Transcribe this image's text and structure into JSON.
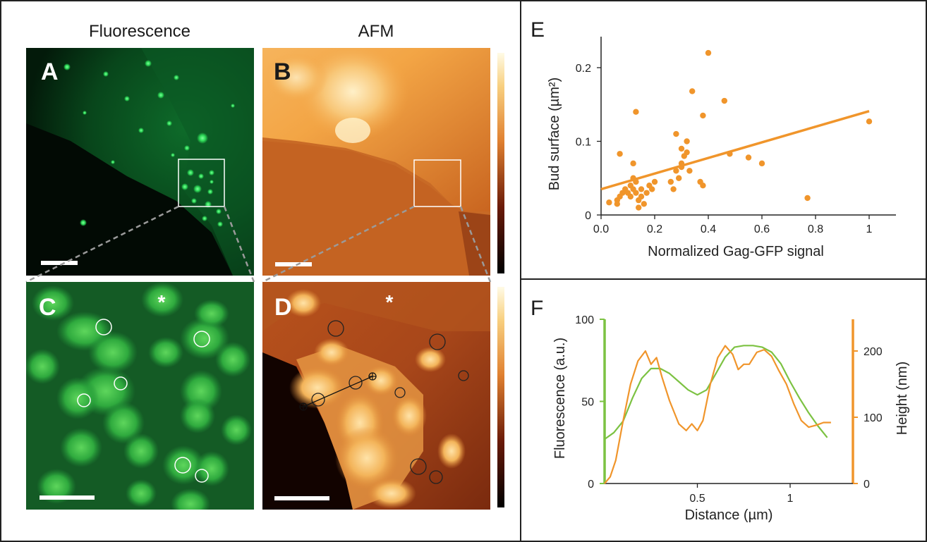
{
  "figure": {
    "column_titles": {
      "left": "Fluorescence",
      "right": "AFM"
    },
    "panel_letters": {
      "a": "A",
      "b": "B",
      "c": "C",
      "d": "D",
      "e": "E",
      "f": "F"
    },
    "asterisk": "*",
    "colors": {
      "fluorescence_green": "#1fbf4a",
      "afm_orange": "#e8912f",
      "afm_dark": "#1a0600",
      "chart_orange": "#f0952b",
      "chart_green": "#7cc242"
    }
  },
  "chart_data": [
    {
      "panel": "E",
      "type": "scatter",
      "xlabel": "Normalized Gag-GFP signal",
      "ylabel": "Bud surface (µm²)",
      "xlim": [
        0,
        1.1
      ],
      "ylim": [
        0,
        0.24
      ],
      "xticks": [
        "0.0",
        "0.2",
        "0.4",
        "0.6",
        "0.8",
        "1"
      ],
      "xtick_values": [
        0,
        0.2,
        0.4,
        0.6,
        0.8,
        1
      ],
      "yticks": [
        "0",
        "0.1",
        "0.2"
      ],
      "ytick_values": [
        0,
        0.1,
        0.2
      ],
      "grid": false,
      "points": [
        [
          0.03,
          0.017
        ],
        [
          0.06,
          0.02
        ],
        [
          0.06,
          0.015
        ],
        [
          0.07,
          0.025
        ],
        [
          0.08,
          0.03
        ],
        [
          0.09,
          0.035
        ],
        [
          0.1,
          0.03
        ],
        [
          0.11,
          0.04
        ],
        [
          0.11,
          0.025
        ],
        [
          0.12,
          0.035
        ],
        [
          0.12,
          0.05
        ],
        [
          0.13,
          0.03
        ],
        [
          0.13,
          0.045
        ],
        [
          0.14,
          0.02
        ],
        [
          0.14,
          0.01
        ],
        [
          0.15,
          0.035
        ],
        [
          0.15,
          0.025
        ],
        [
          0.16,
          0.015
        ],
        [
          0.17,
          0.03
        ],
        [
          0.18,
          0.04
        ],
        [
          0.19,
          0.035
        ],
        [
          0.2,
          0.045
        ],
        [
          0.07,
          0.083
        ],
        [
          0.12,
          0.07
        ],
        [
          0.13,
          0.14
        ],
        [
          0.26,
          0.045
        ],
        [
          0.27,
          0.035
        ],
        [
          0.28,
          0.06
        ],
        [
          0.29,
          0.05
        ],
        [
          0.3,
          0.07
        ],
        [
          0.3,
          0.065
        ],
        [
          0.31,
          0.08
        ],
        [
          0.32,
          0.085
        ],
        [
          0.32,
          0.1
        ],
        [
          0.28,
          0.11
        ],
        [
          0.3,
          0.09
        ],
        [
          0.33,
          0.06
        ],
        [
          0.34,
          0.168
        ],
        [
          0.37,
          0.045
        ],
        [
          0.38,
          0.04
        ],
        [
          0.38,
          0.135
        ],
        [
          0.4,
          0.22
        ],
        [
          0.46,
          0.155
        ],
        [
          0.48,
          0.083
        ],
        [
          0.55,
          0.078
        ],
        [
          0.6,
          0.07
        ],
        [
          0.77,
          0.023
        ],
        [
          1.0,
          0.127
        ]
      ],
      "fit_line": {
        "x": [
          0.0,
          1.0
        ],
        "y": [
          0.035,
          0.141
        ]
      }
    },
    {
      "panel": "F",
      "type": "line",
      "xlabel": "Distance (µm)",
      "ylabel_left": "Fluorescence (a.u.)",
      "ylabel_right": "Height (nm)",
      "xlim": [
        0,
        1.3
      ],
      "ylim_left": [
        0,
        100
      ],
      "ylim_right": [
        0,
        240
      ],
      "xticks": [
        "0.5",
        "1"
      ],
      "xtick_values": [
        0.5,
        1
      ],
      "yticks_left": [
        "0",
        "50",
        "100"
      ],
      "ytick_values_left": [
        0,
        50,
        100
      ],
      "yticks_right": [
        "0",
        "100",
        "200"
      ],
      "ytick_values_right": [
        0,
        100,
        200
      ],
      "grid": false,
      "series": [
        {
          "axis": "left",
          "x": [
            0,
            0.05,
            0.1,
            0.15,
            0.2,
            0.25,
            0.3,
            0.35,
            0.4,
            0.45,
            0.5,
            0.55,
            0.6,
            0.65,
            0.7,
            0.75,
            0.8,
            0.85,
            0.9,
            0.95,
            1.0,
            1.05,
            1.1,
            1.15,
            1.2
          ],
          "y": [
            27,
            31,
            38,
            52,
            64,
            70,
            70,
            67,
            62,
            57,
            54,
            57,
            67,
            77,
            83,
            84,
            84,
            83,
            80,
            73,
            62,
            52,
            43,
            35,
            28
          ]
        },
        {
          "axis": "right",
          "x": [
            0,
            0.03,
            0.06,
            0.1,
            0.14,
            0.18,
            0.22,
            0.25,
            0.28,
            0.31,
            0.35,
            0.4,
            0.44,
            0.47,
            0.5,
            0.53,
            0.57,
            0.61,
            0.65,
            0.69,
            0.72,
            0.75,
            0.78,
            0.82,
            0.86,
            0.9,
            0.94,
            0.98,
            1.02,
            1.06,
            1.1,
            1.14,
            1.18,
            1.22
          ],
          "y": [
            0,
            10,
            35,
            95,
            150,
            185,
            200,
            180,
            190,
            160,
            125,
            90,
            80,
            90,
            80,
            95,
            150,
            190,
            208,
            195,
            172,
            180,
            180,
            198,
            202,
            192,
            170,
            150,
            120,
            95,
            85,
            88,
            92,
            92
          ]
        }
      ]
    }
  ]
}
